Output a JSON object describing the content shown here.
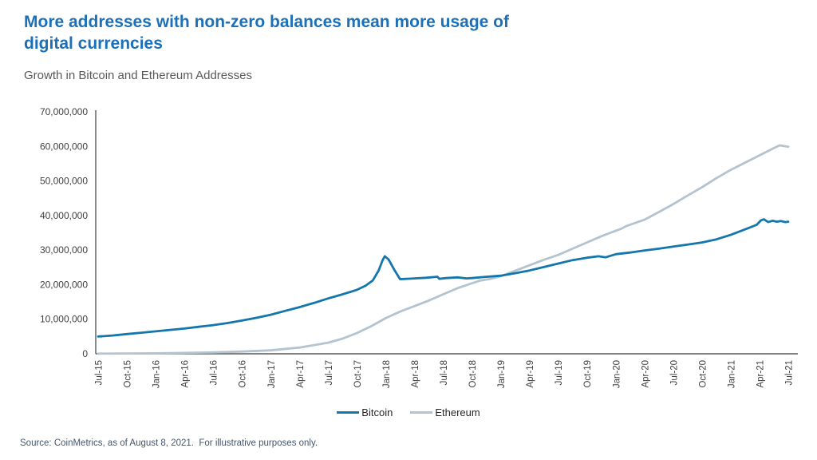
{
  "page": {
    "title_lines": [
      "More addresses with non-zero balances mean more usage of",
      "digital currencies"
    ],
    "subtitle": "Growth in Bitcoin and Ethereum Addresses",
    "source": "Source: CoinMetrics, as of August 8, 2021.  For illustrative purposes only.",
    "accent_color": "#1b70b8"
  },
  "chart_data": {
    "type": "line",
    "title": "Growth in Bitcoin and Ethereum Addresses",
    "unit": "addresses",
    "point_value_unit": "millions of addresses",
    "grid": false,
    "legend_position": "bottom",
    "x_axis": {
      "label_rotation": -90,
      "categories": [
        "Jul-15",
        "Oct-15",
        "Jan-16",
        "Apr-16",
        "Jul-16",
        "Oct-16",
        "Jan-17",
        "Apr-17",
        "Jul-17",
        "Oct-17",
        "Jan-18",
        "Apr-18",
        "Jul-18",
        "Oct-18",
        "Jan-19",
        "Apr-19",
        "Jul-19",
        "Oct-19",
        "Jan-20",
        "Apr-20",
        "Jul-20",
        "Oct-20",
        "Jan-21",
        "Apr-21",
        "Jul-21"
      ]
    },
    "y_axis": {
      "min": 0,
      "max": 70000000,
      "tick_interval": 10000000,
      "tick_labels": [
        "0",
        "10,000,000",
        "20,000,000",
        "30,000,000",
        "40,000,000",
        "50,000,000",
        "60,000,000",
        "70,000,000"
      ]
    },
    "series": [
      {
        "name": "Bitcoin",
        "color": "#1376ad",
        "quarterly_values_millions": [
          5.0,
          5.7,
          6.5,
          7.3,
          8.3,
          9.6,
          11.3,
          13.5,
          16.0,
          18.5,
          27.5,
          21.8,
          22.1,
          21.9,
          22.6,
          24.1,
          26.1,
          27.8,
          28.8,
          29.9,
          31.0,
          32.2,
          34.4,
          38.3,
          38.2
        ],
        "points": [
          [
            0,
            5.0
          ],
          [
            0.5,
            5.3
          ],
          [
            1,
            5.7
          ],
          [
            1.5,
            6.1
          ],
          [
            2,
            6.5
          ],
          [
            2.5,
            6.9
          ],
          [
            3,
            7.3
          ],
          [
            3.5,
            7.8
          ],
          [
            4,
            8.3
          ],
          [
            4.5,
            8.9
          ],
          [
            5,
            9.6
          ],
          [
            5.5,
            10.4
          ],
          [
            6,
            11.3
          ],
          [
            6.5,
            12.4
          ],
          [
            7,
            13.5
          ],
          [
            7.5,
            14.7
          ],
          [
            8,
            16.0
          ],
          [
            8.5,
            17.2
          ],
          [
            9,
            18.5
          ],
          [
            9.3,
            19.7
          ],
          [
            9.55,
            21.2
          ],
          [
            9.75,
            24.0
          ],
          [
            9.9,
            27.2
          ],
          [
            9.97,
            28.2
          ],
          [
            10.1,
            27.3
          ],
          [
            10.3,
            24.3
          ],
          [
            10.5,
            21.6
          ],
          [
            10.75,
            21.7
          ],
          [
            11,
            21.8
          ],
          [
            11.4,
            22.0
          ],
          [
            11.8,
            22.3
          ],
          [
            11.86,
            21.7
          ],
          [
            12.1,
            21.9
          ],
          [
            12.5,
            22.1
          ],
          [
            12.8,
            21.8
          ],
          [
            13,
            21.9
          ],
          [
            13.4,
            22.2
          ],
          [
            14,
            22.6
          ],
          [
            14.5,
            23.3
          ],
          [
            15,
            24.1
          ],
          [
            15.5,
            25.1
          ],
          [
            16,
            26.1
          ],
          [
            16.5,
            27.1
          ],
          [
            17,
            27.8
          ],
          [
            17.4,
            28.2
          ],
          [
            17.65,
            27.9
          ],
          [
            18,
            28.8
          ],
          [
            18.5,
            29.3
          ],
          [
            19,
            29.9
          ],
          [
            19.5,
            30.4
          ],
          [
            20,
            31.0
          ],
          [
            20.5,
            31.6
          ],
          [
            21,
            32.2
          ],
          [
            21.5,
            33.1
          ],
          [
            22,
            34.4
          ],
          [
            22.5,
            36.0
          ],
          [
            22.9,
            37.3
          ],
          [
            23.05,
            38.6
          ],
          [
            23.15,
            38.9
          ],
          [
            23.3,
            38.1
          ],
          [
            23.45,
            38.5
          ],
          [
            23.6,
            38.2
          ],
          [
            23.75,
            38.4
          ],
          [
            23.9,
            38.1
          ],
          [
            24,
            38.2
          ]
        ]
      },
      {
        "name": "Ethereum",
        "color": "#b4c3d0",
        "quarterly_values_millions": [
          0.05,
          0.1,
          0.15,
          0.25,
          0.4,
          0.65,
          1.0,
          1.8,
          3.2,
          6.0,
          10.3,
          13.8,
          17.2,
          20.4,
          22.4,
          25.6,
          28.6,
          32.2,
          35.6,
          38.8,
          43.3,
          48.2,
          53.2,
          57.4,
          59.9
        ],
        "points": [
          [
            0,
            0.05
          ],
          [
            1,
            0.1
          ],
          [
            2,
            0.15
          ],
          [
            3,
            0.25
          ],
          [
            4,
            0.4
          ],
          [
            5,
            0.65
          ],
          [
            6,
            1.0
          ],
          [
            7,
            1.8
          ],
          [
            8,
            3.2
          ],
          [
            8.5,
            4.4
          ],
          [
            9,
            6.0
          ],
          [
            9.5,
            8.0
          ],
          [
            10,
            10.3
          ],
          [
            10.5,
            12.2
          ],
          [
            11,
            13.8
          ],
          [
            11.5,
            15.4
          ],
          [
            12,
            17.2
          ],
          [
            12.5,
            19.0
          ],
          [
            13,
            20.4
          ],
          [
            13.3,
            21.2
          ],
          [
            13.6,
            21.6
          ],
          [
            14,
            22.4
          ],
          [
            14.5,
            24.0
          ],
          [
            15,
            25.6
          ],
          [
            15.5,
            27.2
          ],
          [
            16,
            28.6
          ],
          [
            16.5,
            30.4
          ],
          [
            17,
            32.2
          ],
          [
            17.5,
            34.0
          ],
          [
            18,
            35.6
          ],
          [
            18.2,
            36.2
          ],
          [
            18.35,
            36.9
          ],
          [
            19,
            38.8
          ],
          [
            19.5,
            41.0
          ],
          [
            20,
            43.3
          ],
          [
            20.5,
            45.8
          ],
          [
            21,
            48.2
          ],
          [
            21.5,
            50.8
          ],
          [
            22,
            53.2
          ],
          [
            22.5,
            55.3
          ],
          [
            23,
            57.4
          ],
          [
            23.5,
            59.5
          ],
          [
            23.7,
            60.3
          ],
          [
            23.85,
            60.1
          ],
          [
            24,
            59.9
          ]
        ]
      }
    ]
  }
}
